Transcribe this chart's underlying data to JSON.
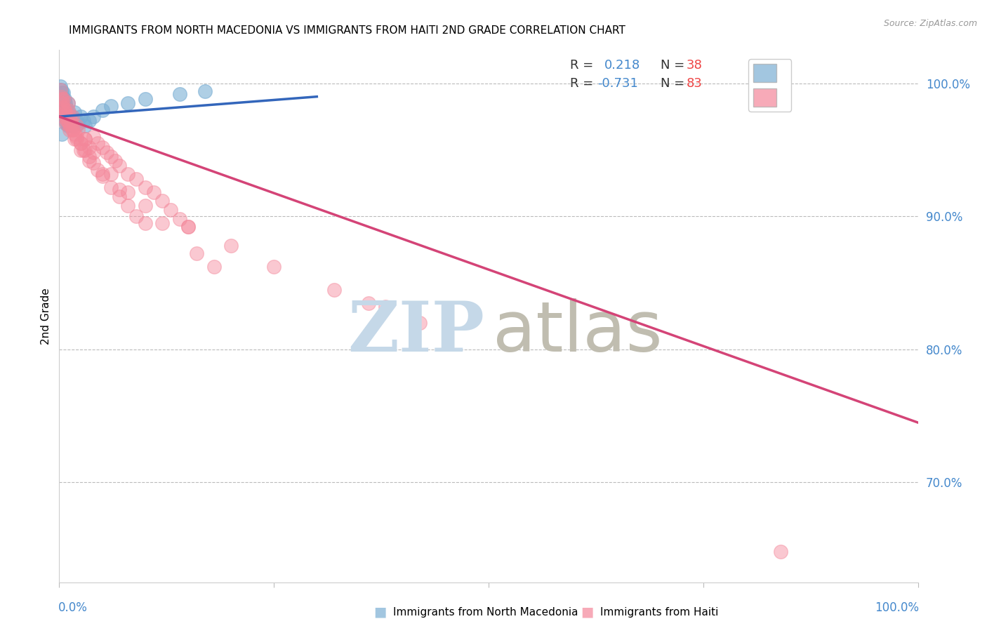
{
  "title": "IMMIGRANTS FROM NORTH MACEDONIA VS IMMIGRANTS FROM HAITI 2ND GRADE CORRELATION CHART",
  "source": "Source: ZipAtlas.com",
  "ylabel": "2nd Grade",
  "ytick_labels": [
    "100.0%",
    "90.0%",
    "80.0%",
    "70.0%"
  ],
  "ytick_positions": [
    1.0,
    0.9,
    0.8,
    0.7
  ],
  "xlim": [
    0.0,
    1.0
  ],
  "ylim": [
    0.625,
    1.025
  ],
  "color_blue": "#7BAFD4",
  "color_pink": "#F4879A",
  "color_line_blue": "#3366BB",
  "color_line_pink": "#D44477",
  "watermark_color_zip": "#C5D8E8",
  "watermark_color_atlas": "#C0BDB0",
  "blue_scatter_x": [
    0.001,
    0.002,
    0.003,
    0.003,
    0.004,
    0.004,
    0.005,
    0.005,
    0.006,
    0.006,
    0.007,
    0.007,
    0.008,
    0.008,
    0.009,
    0.01,
    0.01,
    0.011,
    0.012,
    0.013,
    0.014,
    0.015,
    0.016,
    0.018,
    0.02,
    0.022,
    0.025,
    0.028,
    0.03,
    0.035,
    0.04,
    0.05,
    0.06,
    0.08,
    0.1,
    0.14,
    0.17,
    0.003
  ],
  "blue_scatter_y": [
    0.998,
    0.995,
    0.993,
    0.99,
    0.988,
    0.985,
    0.993,
    0.98,
    0.988,
    0.975,
    0.985,
    0.972,
    0.982,
    0.97,
    0.978,
    0.985,
    0.968,
    0.978,
    0.975,
    0.972,
    0.97,
    0.975,
    0.968,
    0.978,
    0.972,
    0.97,
    0.975,
    0.972,
    0.968,
    0.972,
    0.975,
    0.98,
    0.983,
    0.985,
    0.988,
    0.992,
    0.994,
    0.962
  ],
  "pink_scatter_x": [
    0.001,
    0.002,
    0.003,
    0.004,
    0.005,
    0.006,
    0.007,
    0.008,
    0.009,
    0.01,
    0.011,
    0.012,
    0.013,
    0.014,
    0.015,
    0.016,
    0.018,
    0.02,
    0.022,
    0.025,
    0.028,
    0.03,
    0.035,
    0.04,
    0.045,
    0.05,
    0.055,
    0.06,
    0.065,
    0.07,
    0.08,
    0.09,
    0.1,
    0.11,
    0.12,
    0.13,
    0.14,
    0.15,
    0.005,
    0.01,
    0.015,
    0.02,
    0.025,
    0.03,
    0.035,
    0.04,
    0.045,
    0.05,
    0.06,
    0.07,
    0.08,
    0.09,
    0.1,
    0.005,
    0.008,
    0.012,
    0.018,
    0.025,
    0.035,
    0.05,
    0.07,
    0.1,
    0.15,
    0.2,
    0.25,
    0.32,
    0.36,
    0.42,
    0.005,
    0.01,
    0.015,
    0.02,
    0.03,
    0.04,
    0.06,
    0.08,
    0.12,
    0.84,
    0.38,
    0.16,
    0.18
  ],
  "pink_scatter_y": [
    0.995,
    0.99,
    0.988,
    0.985,
    0.982,
    0.98,
    0.978,
    0.975,
    0.972,
    0.985,
    0.97,
    0.975,
    0.968,
    0.972,
    0.968,
    0.965,
    0.962,
    0.958,
    0.965,
    0.955,
    0.95,
    0.958,
    0.952,
    0.96,
    0.955,
    0.952,
    0.948,
    0.945,
    0.942,
    0.938,
    0.932,
    0.928,
    0.922,
    0.918,
    0.912,
    0.905,
    0.898,
    0.892,
    0.978,
    0.972,
    0.965,
    0.96,
    0.955,
    0.95,
    0.945,
    0.94,
    0.935,
    0.93,
    0.922,
    0.915,
    0.908,
    0.9,
    0.895,
    0.975,
    0.97,
    0.965,
    0.958,
    0.95,
    0.942,
    0.932,
    0.92,
    0.908,
    0.892,
    0.878,
    0.862,
    0.845,
    0.835,
    0.82,
    0.988,
    0.98,
    0.975,
    0.968,
    0.958,
    0.948,
    0.932,
    0.918,
    0.895,
    0.648,
    0.832,
    0.872,
    0.862
  ],
  "blue_trend_x": [
    0.0,
    0.3
  ],
  "blue_trend_y": [
    0.975,
    0.99
  ],
  "pink_trend_x": [
    0.0,
    1.0
  ],
  "pink_trend_y": [
    0.975,
    0.745
  ],
  "bottom_legend_blue": "Immigrants from North Macedonia",
  "bottom_legend_pink": "Immigrants from Haiti"
}
